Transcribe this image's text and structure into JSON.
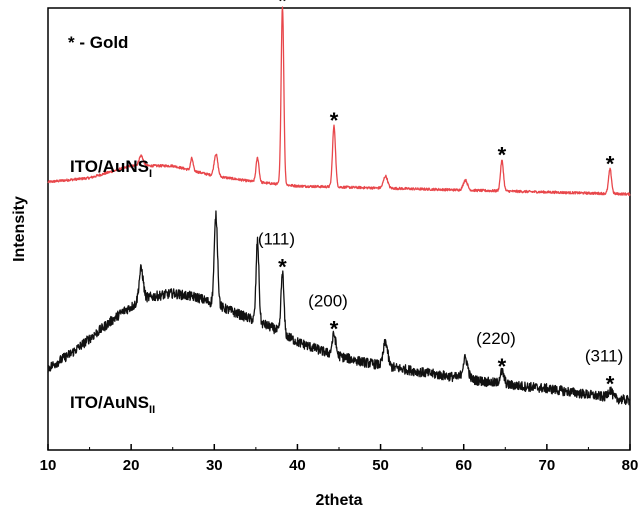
{
  "chart_data": {
    "type": "line",
    "xlabel": "2theta",
    "ylabel": "Intensity",
    "xlim": [
      10,
      80
    ],
    "xticks": [
      10,
      20,
      30,
      40,
      50,
      60,
      70,
      80
    ],
    "note": "* - Gold",
    "grid": false,
    "series": [
      {
        "label_main": "ITO/AuNS",
        "label_sub": "I",
        "color": "#e8474b",
        "baseline": [
          [
            10,
            0.6
          ],
          [
            15,
            0.61
          ],
          [
            20,
            0.64
          ],
          [
            25,
            0.64
          ],
          [
            30,
            0.615
          ],
          [
            35,
            0.6
          ],
          [
            40,
            0.59
          ],
          [
            50,
            0.585
          ],
          [
            60,
            0.58
          ],
          [
            70,
            0.575
          ],
          [
            80,
            0.57
          ]
        ],
        "noise": 0.003,
        "peaks": [
          {
            "x": 21.2,
            "height": 0.025,
            "width": 0.25
          },
          {
            "x": 27.3,
            "height": 0.03,
            "width": 0.15
          },
          {
            "x": 30.2,
            "height": 0.055,
            "width": 0.22
          },
          {
            "x": 35.2,
            "height": 0.06,
            "width": 0.18
          },
          {
            "x": 38.2,
            "height": 0.44,
            "width": 0.16
          },
          {
            "x": 44.4,
            "height": 0.15,
            "width": 0.18
          },
          {
            "x": 50.6,
            "height": 0.03,
            "width": 0.25
          },
          {
            "x": 60.2,
            "height": 0.025,
            "width": 0.25
          },
          {
            "x": 64.6,
            "height": 0.075,
            "width": 0.18
          },
          {
            "x": 77.6,
            "height": 0.06,
            "width": 0.18
          }
        ]
      },
      {
        "label_main": "ITO/AuNS",
        "label_sub": "II",
        "color": "#111111",
        "baseline": [
          [
            10,
            0.14
          ],
          [
            13,
            0.18
          ],
          [
            16,
            0.23
          ],
          [
            19,
            0.28
          ],
          [
            22,
            0.315
          ],
          [
            25,
            0.325
          ],
          [
            28,
            0.315
          ],
          [
            31,
            0.29
          ],
          [
            34,
            0.265
          ],
          [
            37,
            0.24
          ],
          [
            40,
            0.205
          ],
          [
            44,
            0.175
          ],
          [
            48,
            0.155
          ],
          [
            55,
            0.13
          ],
          [
            60,
            0.115
          ],
          [
            65,
            0.1
          ],
          [
            70,
            0.09
          ],
          [
            75,
            0.075
          ],
          [
            80,
            0.06
          ]
        ],
        "noise": 0.012,
        "peaks": [
          {
            "x": 21.2,
            "height": 0.08,
            "width": 0.25
          },
          {
            "x": 30.2,
            "height": 0.22,
            "width": 0.2
          },
          {
            "x": 35.2,
            "height": 0.2,
            "width": 0.17
          },
          {
            "x": 38.2,
            "height": 0.15,
            "width": 0.17
          },
          {
            "x": 44.4,
            "height": 0.05,
            "width": 0.22
          },
          {
            "x": 50.6,
            "height": 0.06,
            "width": 0.25
          },
          {
            "x": 60.2,
            "height": 0.05,
            "width": 0.3
          },
          {
            "x": 64.6,
            "height": 0.03,
            "width": 0.25
          },
          {
            "x": 77.6,
            "height": 0.02,
            "width": 0.25
          }
        ]
      }
    ],
    "annotations": [
      {
        "text": "(111)",
        "x": 38.2,
        "series": 1
      },
      {
        "text": "(200)",
        "x": 44.4,
        "series": 1
      },
      {
        "text": "(220)",
        "x": 64.6,
        "series": 1
      },
      {
        "text": "(311)",
        "x": 77.6,
        "series": 1
      }
    ],
    "gold_markers": [
      {
        "text": "*",
        "x": 38.2,
        "series": 0
      },
      {
        "text": "*",
        "x": 44.4,
        "series": 0
      },
      {
        "text": "*",
        "x": 64.6,
        "series": 0
      },
      {
        "text": "*",
        "x": 77.6,
        "series": 0
      },
      {
        "text": "*",
        "x": 38.2,
        "series": 1
      },
      {
        "text": "*",
        "x": 44.4,
        "series": 1
      },
      {
        "text": "*",
        "x": 64.6,
        "series": 1
      },
      {
        "text": "*",
        "x": 77.6,
        "series": 1
      }
    ]
  }
}
